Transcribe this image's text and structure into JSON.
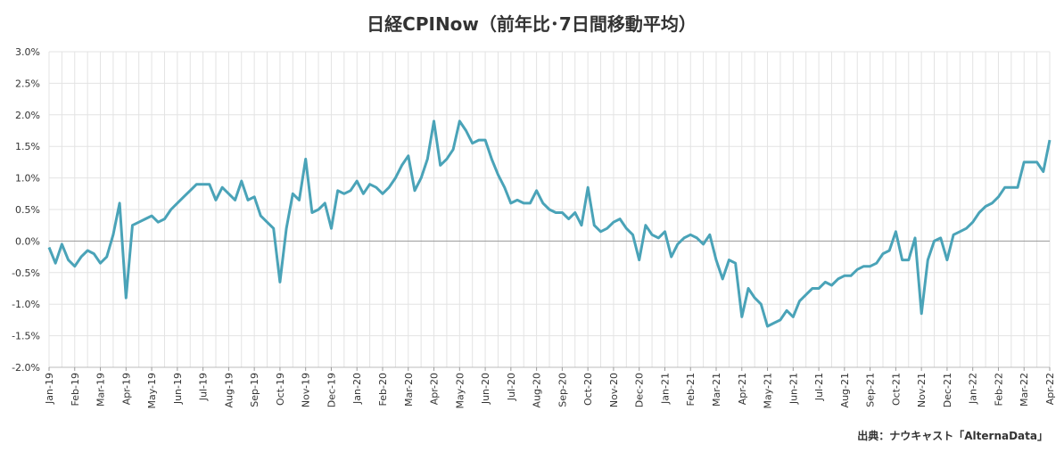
{
  "chart_data": {
    "type": "line",
    "title": "日経CPINow（前年比･7日間移動平均）",
    "source": "出典：ナウキャスト「AlternaData」",
    "categories": [
      "Jan-19",
      null,
      null,
      null,
      "Feb-19",
      null,
      null,
      null,
      "Mar-19",
      null,
      null,
      null,
      "Apr-19",
      null,
      null,
      null,
      "May-19",
      null,
      null,
      null,
      "Jun-19",
      null,
      null,
      null,
      "Jul-19",
      null,
      null,
      null,
      "Aug-19",
      null,
      null,
      null,
      "Sep-19",
      null,
      null,
      null,
      "Oct-19",
      null,
      null,
      null,
      "Nov-19",
      null,
      null,
      null,
      "Dec-19",
      null,
      null,
      null,
      "Jan-20",
      null,
      null,
      null,
      "Feb-20",
      null,
      null,
      null,
      "Mar-20",
      null,
      null,
      null,
      "Apr-20",
      null,
      null,
      null,
      "May-20",
      null,
      null,
      null,
      "Jun-20",
      null,
      null,
      null,
      "Jul-20",
      null,
      null,
      null,
      "Aug-20",
      null,
      null,
      null,
      "Sep-20",
      null,
      null,
      null,
      "Oct-20",
      null,
      null,
      null,
      "Nov-20",
      null,
      null,
      null,
      "Dec-20",
      null,
      null,
      null,
      "Jan-21",
      null,
      null,
      null,
      "Feb-21",
      null,
      null,
      null,
      "Mar-21",
      null,
      null,
      null,
      "Apr-21",
      null,
      null,
      null,
      "May-21",
      null,
      null,
      null,
      "Jun-21",
      null,
      null,
      null,
      "Jul-21",
      null,
      null,
      null,
      "Aug-21",
      null,
      null,
      null,
      "Sep-21",
      null,
      null,
      null,
      "Oct-21",
      null,
      null,
      null,
      "Nov-21",
      null,
      null,
      null,
      "Dec-21",
      null,
      null,
      null,
      "Jan-22",
      null,
      null,
      null,
      "Feb-22",
      null,
      null,
      null,
      "Mar-22",
      null,
      null,
      null,
      "Apr-22"
    ],
    "series": [
      {
        "name": "日経CPINow",
        "color": "#4aa3b8",
        "values": [
          -0.1,
          -0.35,
          -0.05,
          -0.3,
          -0.4,
          -0.25,
          -0.15,
          -0.2,
          -0.35,
          -0.25,
          0.1,
          0.6,
          -0.9,
          0.25,
          0.3,
          0.35,
          0.4,
          0.3,
          0.35,
          0.5,
          0.6,
          0.7,
          0.8,
          0.9,
          0.9,
          0.9,
          0.65,
          0.85,
          0.75,
          0.65,
          0.95,
          0.65,
          0.7,
          0.4,
          0.3,
          0.2,
          -0.65,
          0.2,
          0.75,
          0.65,
          1.3,
          0.45,
          0.5,
          0.6,
          0.2,
          0.8,
          0.75,
          0.8,
          0.95,
          0.75,
          0.9,
          0.85,
          0.75,
          0.85,
          1.0,
          1.2,
          1.35,
          0.8,
          1.0,
          1.3,
          1.9,
          1.2,
          1.3,
          1.45,
          1.9,
          1.75,
          1.55,
          1.6,
          1.6,
          1.3,
          1.05,
          0.85,
          0.6,
          0.65,
          0.6,
          0.6,
          0.8,
          0.6,
          0.5,
          0.45,
          0.45,
          0.35,
          0.45,
          0.25,
          0.85,
          0.25,
          0.15,
          0.2,
          0.3,
          0.35,
          0.2,
          0.1,
          -0.3,
          0.25,
          0.1,
          0.05,
          0.15,
          -0.25,
          -0.05,
          0.05,
          0.1,
          0.05,
          -0.05,
          0.1,
          -0.3,
          -0.6,
          -0.3,
          -0.35,
          -1.2,
          -0.75,
          -0.9,
          -1.0,
          -1.35,
          -1.3,
          -1.25,
          -1.1,
          -1.2,
          -0.95,
          -0.85,
          -0.75,
          -0.75,
          -0.65,
          -0.7,
          -0.6,
          -0.55,
          -0.55,
          -0.45,
          -0.4,
          -0.4,
          -0.35,
          -0.2,
          -0.15,
          0.15,
          -0.3,
          -0.3,
          0.05,
          -1.15,
          -0.3,
          0.0,
          0.05,
          -0.3,
          0.1,
          0.15,
          0.2,
          0.3,
          0.45,
          0.55,
          0.6,
          0.7,
          0.85,
          0.85,
          0.85,
          1.25,
          1.25,
          1.25,
          1.1,
          1.6
        ]
      }
    ],
    "ylim": [
      -2,
      3
    ],
    "yticks": [
      {
        "value": -2,
        "label": "-2.0%"
      },
      {
        "value": -1.5,
        "label": "-1.5%"
      },
      {
        "value": -1,
        "label": "-1.0%"
      },
      {
        "value": -0.5,
        "label": "-0.5%"
      },
      {
        "value": 0,
        "label": "0.0%"
      },
      {
        "value": 0.5,
        "label": "0.5%"
      },
      {
        "value": 1,
        "label": "1.0%"
      },
      {
        "value": 1.5,
        "label": "1.5%"
      },
      {
        "value": 2,
        "label": "2.0%"
      },
      {
        "value": 2.5,
        "label": "2.5%"
      },
      {
        "value": 3,
        "label": "3.0%"
      }
    ],
    "grid": true
  }
}
